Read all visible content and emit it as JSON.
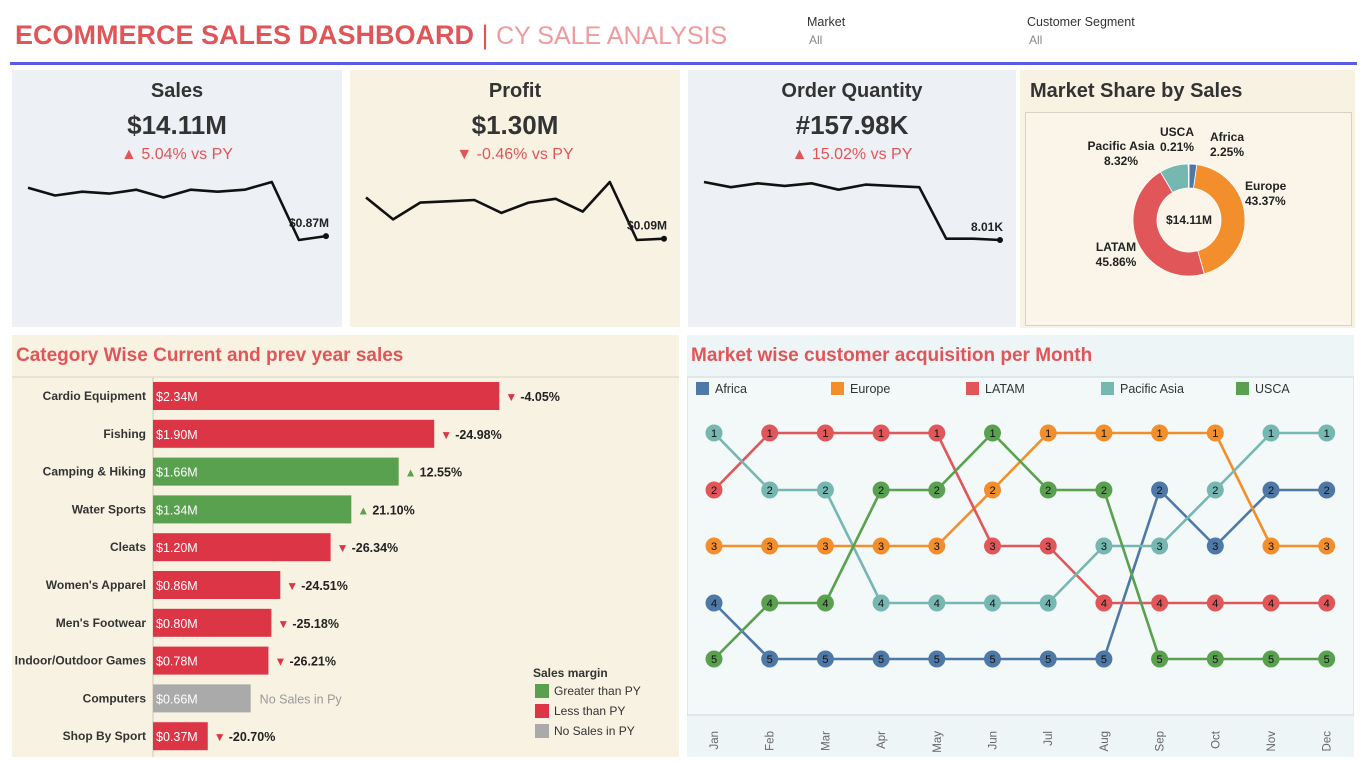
{
  "header": {
    "title_main": "ECOMMERCE SALES DASHBOARD",
    "title_sep": "|",
    "title_sub": "CY SALE ANALYSIS",
    "filters": [
      {
        "label": "Market",
        "value": "All"
      },
      {
        "label": "Customer Segment",
        "value": "All"
      }
    ]
  },
  "kpis": [
    {
      "title": "Sales",
      "value": "$14.11M",
      "delta_arrow": "▲",
      "delta": "5.04% vs PY",
      "end_label": "$0.87M",
      "spark": [
        0.87,
        0.83,
        0.85,
        0.84,
        0.86,
        0.82,
        0.86,
        0.85,
        0.86,
        0.9,
        0.6,
        0.62
      ]
    },
    {
      "title": "Profit",
      "value": "$1.30M",
      "delta_arrow": "▼",
      "delta": "-0.46% vs PY",
      "end_label": "$0.09M",
      "spark": [
        0.125,
        0.108,
        0.121,
        0.122,
        0.123,
        0.113,
        0.121,
        0.124,
        0.114,
        0.137,
        0.092,
        0.093
      ]
    },
    {
      "title": "Order Quantity",
      "value": "#157.98K",
      "delta_arrow": "▲",
      "delta": "15.02%  vs PY",
      "end_label": "8.01K",
      "spark": [
        14.6,
        14.2,
        14.5,
        14.3,
        14.5,
        14.0,
        14.4,
        14.3,
        14.2,
        10.2,
        10.2,
        10.1
      ]
    }
  ],
  "market_share": {
    "title": "Market Share by Sales",
    "center_label": "$14.11M",
    "slices": [
      {
        "name": "Africa",
        "pct": 2.25,
        "label": "2.25%",
        "color": "#4e79a7"
      },
      {
        "name": "Europe",
        "pct": 43.37,
        "label": "43.37%",
        "color": "#f28e2b"
      },
      {
        "name": "LATAM",
        "pct": 45.86,
        "label": "45.86%",
        "color": "#e15759"
      },
      {
        "name": "Pacific Asia",
        "pct": 8.32,
        "label": "8.32%",
        "color": "#76b7b2"
      },
      {
        "name": "USCA",
        "pct": 0.21,
        "label": "0.21%",
        "color": "#59a14f"
      }
    ]
  },
  "category_panel": {
    "title": "Category Wise Current and prev year sales",
    "legend_title": "Sales margin",
    "legend": [
      {
        "label": "Greater  than PY",
        "color": "#59a14f"
      },
      {
        "label": "Less than PY",
        "color": "#dc3545"
      },
      {
        "label": "No Sales in PY",
        "color": "#aaaaaa"
      }
    ]
  },
  "chart_data": [
    {
      "type": "bar",
      "title": "Category Wise Current and prev year sales",
      "categories": [
        "Cardio Equipment",
        "Fishing",
        "Camping & Hiking",
        "Water Sports",
        "Cleats",
        "Women's Apparel",
        "Men's Footwear",
        "Indoor/Outdoor Games",
        "Computers",
        "Shop By Sport"
      ],
      "values": [
        2.34,
        1.9,
        1.66,
        1.34,
        1.2,
        0.86,
        0.8,
        0.78,
        0.66,
        0.37
      ],
      "value_labels": [
        "$2.34M",
        "$1.90M",
        "$1.66M",
        "$1.34M",
        "$1.20M",
        "$0.86M",
        "$0.80M",
        "$0.78M",
        "$0.66M",
        "$0.37M"
      ],
      "change_labels": [
        "-4.05%",
        "-24.98%",
        "12.55%",
        "21.10%",
        "-26.34%",
        "-24.51%",
        "-25.18%",
        "-26.21%",
        "No Sales in Py",
        "-20.70%"
      ],
      "status": [
        "less",
        "less",
        "greater",
        "greater",
        "less",
        "less",
        "less",
        "less",
        "none",
        "less"
      ],
      "arrows": {
        "less": "▼",
        "greater": "▲"
      }
    },
    {
      "type": "line",
      "title": "Market wise customer acquisition per Month",
      "x": [
        "Jan",
        "Feb",
        "Mar",
        "Apr",
        "May",
        "Jun",
        "Jul",
        "Aug",
        "Sep",
        "Oct",
        "Nov",
        "Dec"
      ],
      "y_is_rank": true,
      "series": [
        {
          "name": "Africa",
          "color": "#4e79a7",
          "values": [
            4,
            5,
            5,
            5,
            5,
            5,
            5,
            5,
            2,
            3,
            2,
            2
          ]
        },
        {
          "name": "Europe",
          "color": "#f28e2b",
          "values": [
            3,
            3,
            3,
            3,
            3,
            2,
            1,
            1,
            1,
            1,
            3,
            3
          ]
        },
        {
          "name": "LATAM",
          "color": "#e15759",
          "values": [
            2,
            1,
            1,
            1,
            1,
            3,
            3,
            4,
            4,
            4,
            4,
            4
          ]
        },
        {
          "name": "Pacific Asia",
          "color": "#76b7b2",
          "values": [
            1,
            2,
            2,
            4,
            4,
            4,
            4,
            3,
            3,
            2,
            1,
            1
          ]
        },
        {
          "name": "USCA",
          "color": "#59a14f",
          "values": [
            5,
            4,
            4,
            2,
            2,
            1,
            2,
            2,
            5,
            5,
            5,
            5
          ]
        }
      ]
    }
  ]
}
